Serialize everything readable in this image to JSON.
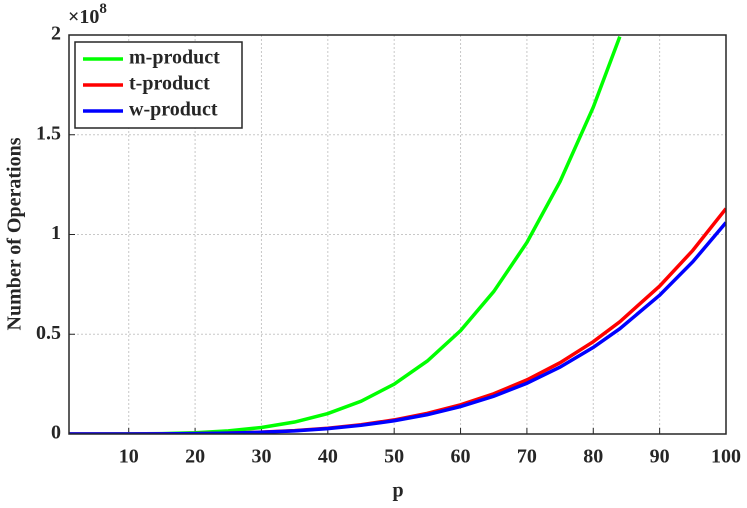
{
  "chart_data": {
    "type": "line",
    "xlabel": "p",
    "ylabel": "Number of Operations",
    "y_multiplier": {
      "base": "×10",
      "exponent": "8"
    },
    "x": [
      1,
      5,
      10,
      15,
      20,
      25,
      30,
      35,
      40,
      45,
      50,
      55,
      60,
      65,
      70,
      75,
      80,
      84,
      90,
      95,
      100
    ],
    "series": [
      {
        "name": "m-product",
        "color": "#00ff00",
        "values": [
          0,
          0,
          0.0004,
          0.002,
          0.0064,
          0.0156,
          0.0324,
          0.06,
          0.1024,
          0.164,
          0.25,
          0.366,
          0.518,
          0.714,
          0.96,
          1.266,
          1.638,
          1.992,
          null,
          null,
          null
        ]
      },
      {
        "name": "t-product",
        "color": "#ff0000",
        "values": [
          0,
          0,
          0.0001,
          0.0006,
          0.0018,
          0.0044,
          0.0092,
          0.017,
          0.0289,
          0.0463,
          0.0706,
          0.1034,
          0.1464,
          0.2017,
          0.2713,
          0.3575,
          0.4628,
          0.5626,
          0.7414,
          0.9204,
          1.13
        ]
      },
      {
        "name": "w-product",
        "color": "#0000ff",
        "values": [
          0,
          0,
          0.0001,
          0.0005,
          0.0017,
          0.0041,
          0.0086,
          0.0159,
          0.0271,
          0.0435,
          0.0663,
          0.097,
          0.1374,
          0.1892,
          0.2545,
          0.3354,
          0.4342,
          0.5278,
          0.6955,
          0.8634,
          1.06
        ]
      }
    ],
    "xlim": [
      1,
      100
    ],
    "xticks": [
      10,
      20,
      30,
      40,
      50,
      60,
      70,
      80,
      90,
      100
    ],
    "ylim": [
      0,
      2
    ],
    "yticks": [
      0,
      0.5,
      1,
      1.5,
      2
    ],
    "grid": true,
    "legend": "upper-left"
  }
}
